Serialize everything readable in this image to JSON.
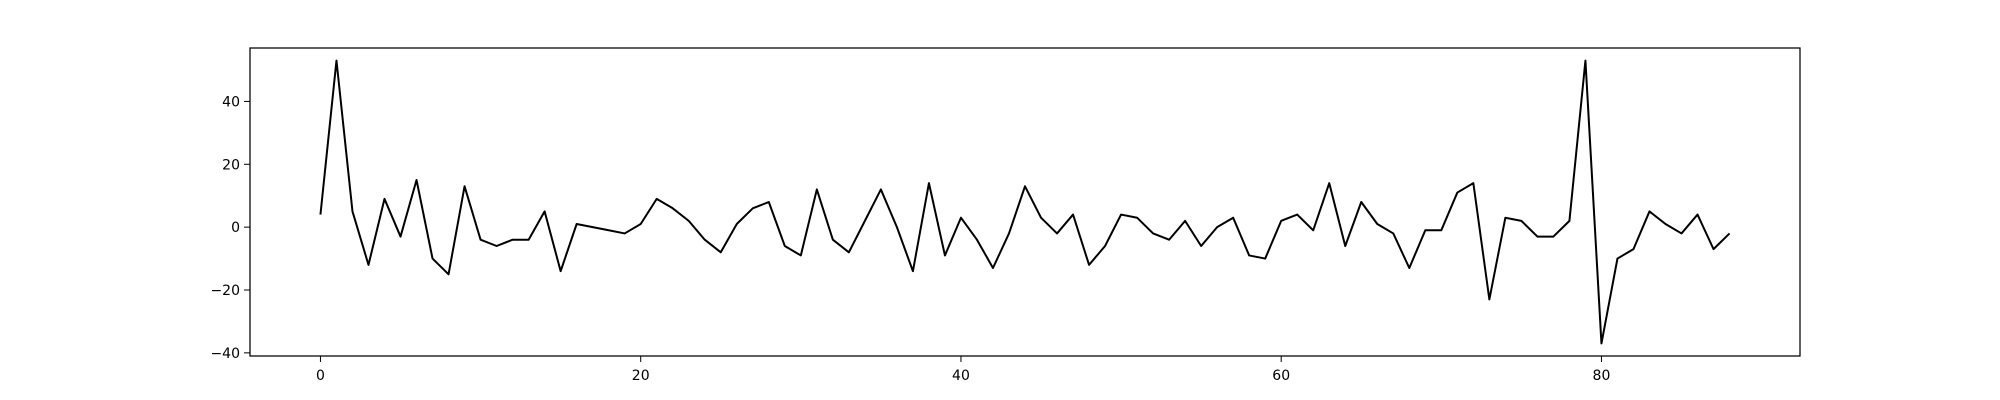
{
  "chart_data": {
    "type": "line",
    "title": "",
    "xlabel": "",
    "ylabel": "",
    "xlim": [
      -4.4,
      92.4
    ],
    "ylim": [
      -41,
      57
    ],
    "xticks": [
      0,
      20,
      40,
      60,
      80
    ],
    "xtick_labels": [
      "0",
      "20",
      "40",
      "60",
      "80"
    ],
    "yticks": [
      -40,
      -20,
      0,
      20,
      40
    ],
    "ytick_labels": [
      "−40",
      "−20",
      "0",
      "20",
      "40"
    ],
    "grid": false,
    "line_color": "#000000",
    "series": [
      {
        "values": [
          4,
          53,
          5,
          -12,
          9,
          -3,
          15,
          -10,
          -15,
          13,
          -4,
          -6,
          -4,
          -4,
          5,
          -14,
          1,
          0,
          -1,
          -2,
          1,
          9,
          6,
          2,
          -4,
          -8,
          1,
          6,
          8,
          -6,
          -9,
          12,
          -4,
          -8,
          2,
          12,
          0,
          -14,
          14,
          -9,
          3,
          -4,
          -13,
          -2,
          13,
          3,
          -2,
          4,
          -12,
          -6,
          4,
          3,
          -2,
          -4,
          2,
          -6,
          0,
          3,
          -9,
          -10,
          2,
          4,
          -1,
          14,
          -6,
          8,
          1,
          -2,
          -13,
          -1,
          -1,
          11,
          14,
          -23,
          3,
          2,
          -3,
          -3,
          2,
          53,
          -37,
          -10,
          -7,
          5,
          1,
          -2,
          4,
          -7,
          -2
        ]
      }
    ]
  }
}
